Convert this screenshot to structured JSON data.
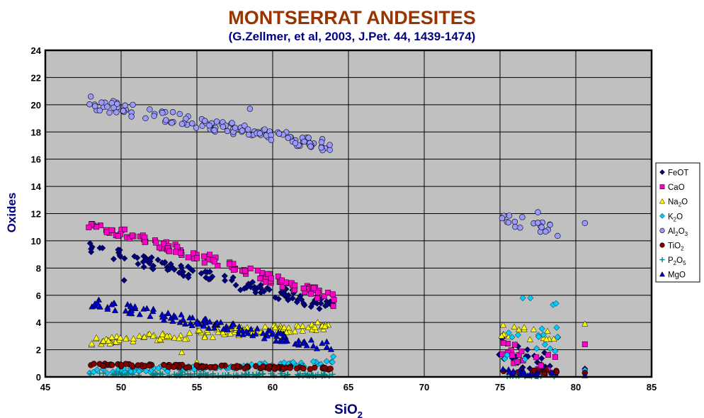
{
  "chart_data": {
    "type": "scatter",
    "title": "MONTSERRAT  ANDESITES",
    "subtitle": "(G.Zellmer, et al, 2003, J.Pet. 44, 1439-1474)",
    "xlabel": {
      "main": "SiO",
      "sub": "2",
      "rest": ""
    },
    "ylabel": "Oxides",
    "xlim": [
      45,
      85
    ],
    "ylim": [
      0,
      24
    ],
    "xticks": [
      "45",
      "50",
      "55",
      "60",
      "65",
      "70",
      "75",
      "80",
      "85"
    ],
    "yticks": [
      "0",
      "2",
      "4",
      "6",
      "8",
      "10",
      "12",
      "14",
      "16",
      "18",
      "20",
      "22",
      "24"
    ],
    "grid": true,
    "legend_position": "right",
    "colors": {
      "title": "#993300",
      "subtitle": "#000080",
      "axis_label": "#000080",
      "plot_background": "#C0C0C0"
    },
    "series": [
      {
        "name": {
          "main": "FeOT",
          "parts": [
            [
              "FeOT",
              ""
            ]
          ]
        },
        "marker": "diamond",
        "color": "#000080",
        "bands": [
          {
            "x0": 48,
            "x1": 64,
            "y0": 9.4,
            "y1": 5.2,
            "spread": 0.45,
            "n": 120
          },
          {
            "x0": 75,
            "x1": 78.8,
            "y0": 2.2,
            "y1": 0.6,
            "spread": 0.9,
            "n": 24
          }
        ],
        "points": [
          [
            50.2,
            7.1
          ],
          [
            80.6,
            0.6
          ]
        ]
      },
      {
        "name": {
          "parts": [
            [
              "CaO",
              ""
            ]
          ]
        },
        "marker": "square",
        "color": "#FF00CC",
        "bands": [
          {
            "x0": 48,
            "x1": 64,
            "y0": 11.3,
            "y1": 5.8,
            "spread": 0.35,
            "n": 120
          },
          {
            "x0": 75,
            "x1": 78.8,
            "y0": 2.0,
            "y1": 0.8,
            "spread": 0.7,
            "n": 18
          }
        ],
        "points": [
          [
            64,
            5.2
          ],
          [
            80.6,
            2.4
          ]
        ]
      },
      {
        "name": {
          "parts": [
            [
              "Na",
              ""
            ],
            [
              "2",
              "sub"
            ],
            [
              "O",
              ""
            ]
          ]
        },
        "marker": "triangle",
        "color": "#FFFF00",
        "bands": [
          {
            "x0": 48,
            "x1": 64,
            "y0": 2.6,
            "y1": 3.8,
            "spread": 0.3,
            "n": 120
          },
          {
            "x0": 75,
            "x1": 78.8,
            "y0": 3.5,
            "y1": 3.0,
            "spread": 0.5,
            "n": 16
          }
        ],
        "points": [
          [
            54,
            1.8
          ],
          [
            55,
            1.1
          ],
          [
            80.6,
            3.9
          ]
        ]
      },
      {
        "name": {
          "parts": [
            [
              "K",
              ""
            ],
            [
              "2",
              "sub"
            ],
            [
              "O",
              ""
            ]
          ]
        },
        "marker": "diamond",
        "color": "#00CCFF",
        "bands": [
          {
            "x0": 48,
            "x1": 64,
            "y0": 0.4,
            "y1": 1.0,
            "spread": 0.18,
            "n": 110
          },
          {
            "x0": 75,
            "x1": 78.8,
            "y0": 2.0,
            "y1": 3.0,
            "spread": 1.2,
            "n": 18
          }
        ],
        "points": [
          [
            76.5,
            5.8
          ],
          [
            77,
            5.8
          ],
          [
            78.5,
            5.3
          ],
          [
            78.7,
            5.4
          ],
          [
            64,
            1.5
          ],
          [
            80.6,
            0.5
          ]
        ]
      },
      {
        "name": {
          "parts": [
            [
              "Al",
              ""
            ],
            [
              "2",
              "sub"
            ],
            [
              "O",
              ""
            ],
            [
              "3",
              "sub"
            ]
          ]
        },
        "marker": "circle",
        "color": "#9999FF",
        "bands": [
          {
            "x0": 48,
            "x1": 64.2,
            "y0": 20.1,
            "y1": 16.9,
            "spread": 0.45,
            "n": 130
          },
          {
            "x0": 75,
            "x1": 78.8,
            "y0": 11.6,
            "y1": 10.8,
            "spread": 0.45,
            "n": 20
          }
        ],
        "points": [
          [
            48,
            20.6
          ],
          [
            58.5,
            19.7
          ],
          [
            80.6,
            11.3
          ],
          [
            77.5,
            12.1
          ]
        ]
      },
      {
        "name": {
          "parts": [
            [
              "TiO",
              ""
            ],
            [
              "2",
              "sub"
            ]
          ]
        },
        "marker": "circle",
        "color": "#800000",
        "bands": [
          {
            "x0": 48,
            "x1": 64,
            "y0": 0.9,
            "y1": 0.6,
            "spread": 0.1,
            "n": 110
          },
          {
            "x0": 75,
            "x1": 78.8,
            "y0": 0.4,
            "y1": 0.3,
            "spread": 0.15,
            "n": 18
          }
        ],
        "points": [
          [
            80.6,
            0.3
          ]
        ]
      },
      {
        "name": {
          "parts": [
            [
              "P",
              ""
            ],
            [
              "2",
              "sub"
            ],
            [
              "O",
              ""
            ],
            [
              "5",
              "sub"
            ]
          ]
        },
        "marker": "plus",
        "color": "#008080",
        "bands": [
          {
            "x0": 48,
            "x1": 64,
            "y0": 0.2,
            "y1": 0.15,
            "spread": 0.08,
            "n": 100
          },
          {
            "x0": 75,
            "x1": 78.8,
            "y0": 0.05,
            "y1": 0.05,
            "spread": 0.04,
            "n": 14
          }
        ],
        "points": []
      },
      {
        "name": {
          "parts": [
            [
              "MgO",
              ""
            ]
          ]
        },
        "marker": "triangle",
        "color": "#0000CC",
        "bands": [
          {
            "x0": 48,
            "x1": 64,
            "y0": 5.5,
            "y1": 2.2,
            "spread": 0.35,
            "n": 120
          },
          {
            "x0": 75,
            "x1": 78.8,
            "y0": 0.4,
            "y1": 0.15,
            "spread": 0.2,
            "n": 18
          }
        ],
        "points": [
          [
            80.6,
            0.1
          ]
        ]
      }
    ]
  }
}
